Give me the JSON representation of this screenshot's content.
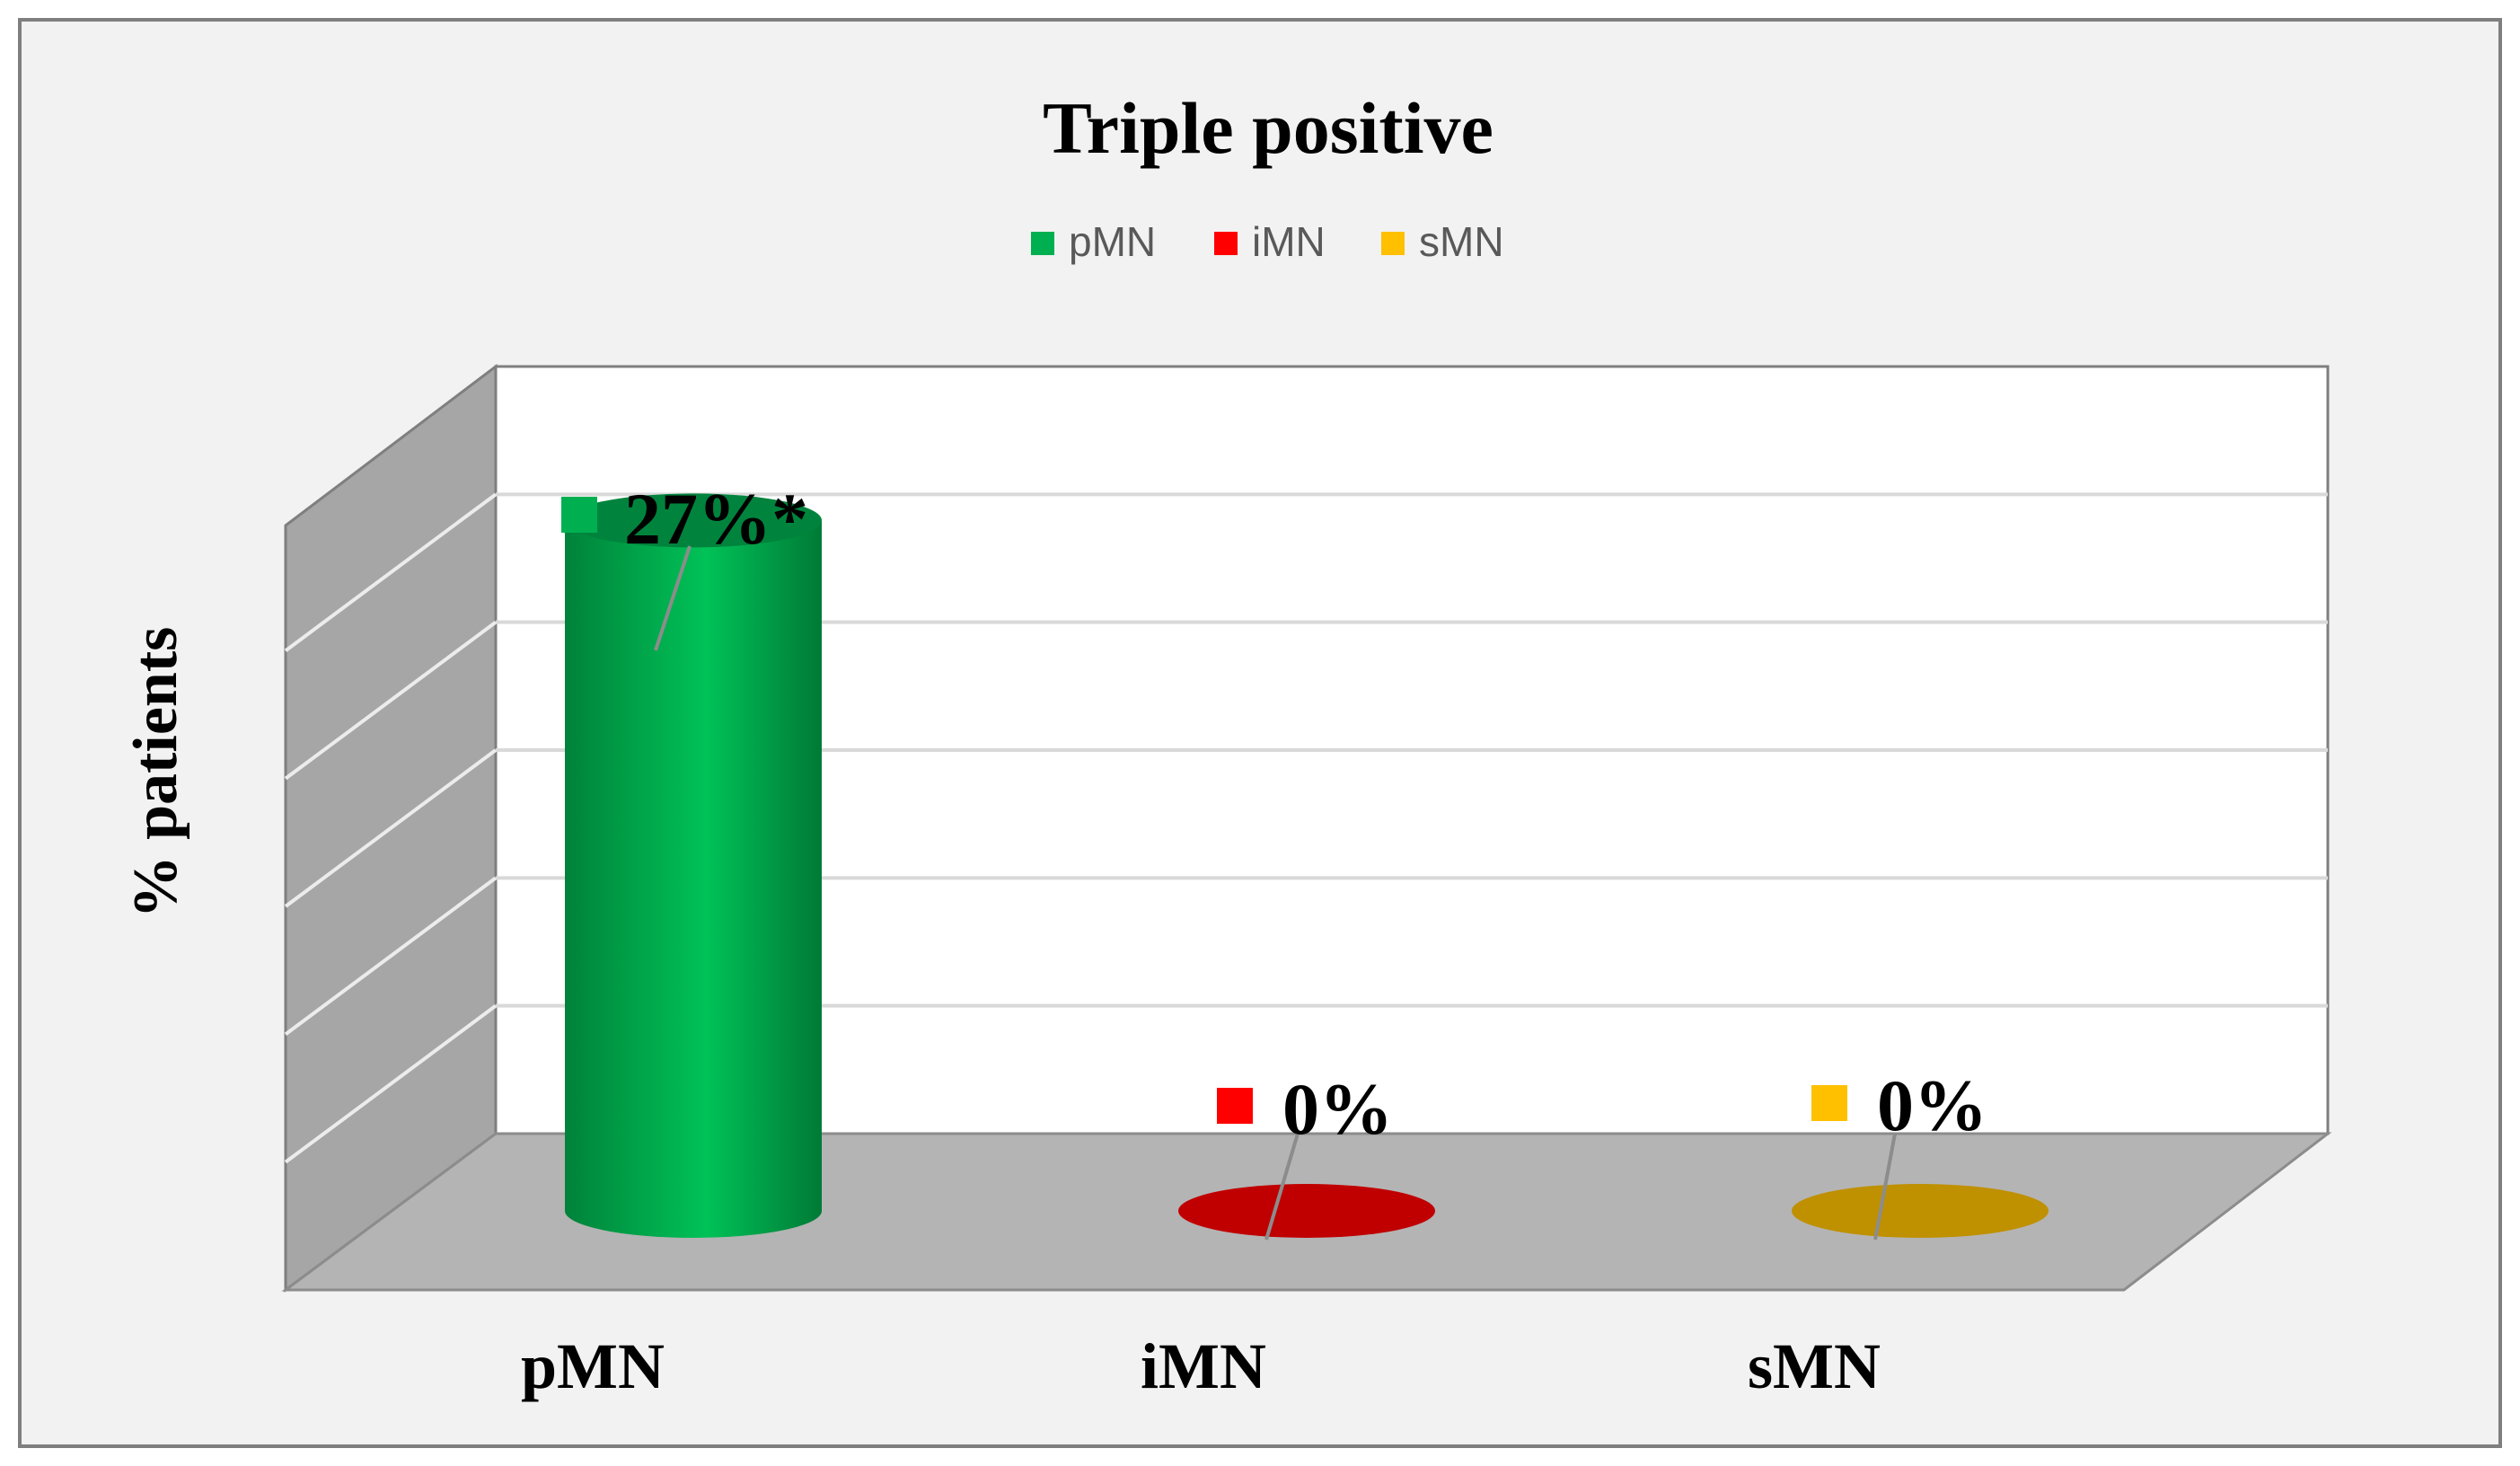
{
  "chart_data": {
    "type": "bar",
    "style": "3d-cylinder",
    "title": "Triple positive",
    "xlabel": "",
    "ylabel": "% patients",
    "ylim": [
      0,
      30
    ],
    "y_tick_step": 5,
    "grid": true,
    "legend_position": "top",
    "categories": [
      "pMN",
      "iMN",
      "sMN"
    ],
    "values": [
      27,
      0,
      0
    ],
    "data_labels": [
      "27%*",
      "0%",
      "0%"
    ],
    "legend": [
      {
        "label": "pMN",
        "color": "#00B050"
      },
      {
        "label": "iMN",
        "color": "#FF0000"
      },
      {
        "label": "sMN",
        "color": "#FFC000"
      }
    ]
  }
}
